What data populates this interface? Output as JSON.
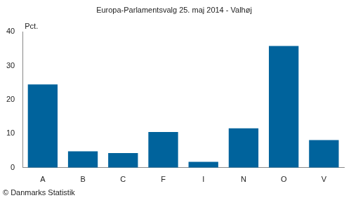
{
  "chart_data": {
    "type": "bar",
    "title": "Europa-Parlamentsvalg 25. maj 2014 - Valhøj",
    "y_label": "Pct.",
    "source": "© Danmarks Statistik",
    "categories": [
      "A",
      "B",
      "C",
      "F",
      "I",
      "N",
      "O",
      "V"
    ],
    "values": [
      24.5,
      4.8,
      4.3,
      10.5,
      1.7,
      11.6,
      35.8,
      8.1
    ],
    "color": "#00639c",
    "ylim": [
      0,
      40
    ],
    "yticks": [
      0,
      10,
      20,
      30,
      40
    ],
    "grid": false
  }
}
